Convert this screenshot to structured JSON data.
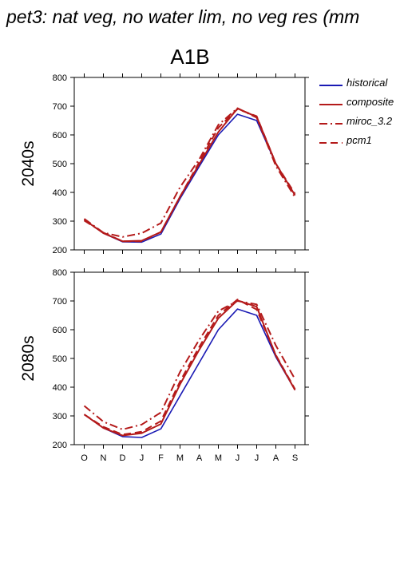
{
  "page": {
    "title": "pet3: nat veg, no water lim, no veg res (mm",
    "scenario": "A1B"
  },
  "colors": {
    "historical": "#1a1ab4",
    "composite": "#b41a1a",
    "miroc_3.2": "#b41a1a",
    "pcm1": "#b41a1a"
  },
  "legend": [
    {
      "label": "historical",
      "style": "solid",
      "color": "#1a1ab4"
    },
    {
      "label": "composite",
      "style": "solid",
      "color": "#b41a1a"
    },
    {
      "label": "miroc_3.2",
      "style": "dashdot",
      "color": "#b41a1a"
    },
    {
      "label": "pcm1",
      "style": "dashed",
      "color": "#b41a1a"
    }
  ],
  "chart_data": [
    {
      "type": "line",
      "row_label": "2040s",
      "categories": [
        "O",
        "N",
        "D",
        "J",
        "F",
        "M",
        "A",
        "M",
        "J",
        "J",
        "A",
        "S"
      ],
      "yticks": [
        200,
        300,
        400,
        500,
        600,
        700,
        800
      ],
      "ylim": [
        200,
        800
      ],
      "series": [
        {
          "name": "historical",
          "style": "solid",
          "values": [
            305,
            258,
            228,
            227,
            255,
            378,
            490,
            600,
            672,
            650,
            500,
            390
          ]
        },
        {
          "name": "composite",
          "style": "solid",
          "values": [
            305,
            258,
            230,
            232,
            262,
            385,
            498,
            610,
            692,
            663,
            500,
            390
          ]
        },
        {
          "name": "miroc_3.2",
          "style": "dashdot",
          "values": [
            308,
            260,
            245,
            258,
            293,
            418,
            515,
            635,
            693,
            660,
            492,
            383
          ]
        },
        {
          "name": "pcm1",
          "style": "dashed",
          "values": [
            302,
            260,
            230,
            230,
            262,
            385,
            505,
            625,
            690,
            665,
            500,
            395
          ]
        }
      ]
    },
    {
      "type": "line",
      "row_label": "2080s",
      "categories": [
        "O",
        "N",
        "D",
        "J",
        "F",
        "M",
        "A",
        "M",
        "J",
        "J",
        "A",
        "S"
      ],
      "yticks": [
        200,
        300,
        400,
        500,
        600,
        700,
        800
      ],
      "ylim": [
        200,
        800
      ],
      "series": [
        {
          "name": "historical",
          "style": "solid",
          "values": [
            305,
            258,
            228,
            225,
            255,
            370,
            485,
            600,
            672,
            650,
            505,
            390
          ]
        },
        {
          "name": "composite",
          "style": "solid",
          "values": [
            305,
            258,
            232,
            240,
            272,
            410,
            530,
            640,
            702,
            680,
            510,
            390
          ]
        },
        {
          "name": "miroc_3.2",
          "style": "dashdot",
          "values": [
            335,
            280,
            253,
            270,
            312,
            453,
            565,
            665,
            700,
            688,
            545,
            428
          ]
        },
        {
          "name": "pcm1",
          "style": "dashed",
          "values": [
            305,
            262,
            235,
            245,
            282,
            420,
            540,
            650,
            705,
            670,
            512,
            393
          ]
        }
      ]
    }
  ]
}
